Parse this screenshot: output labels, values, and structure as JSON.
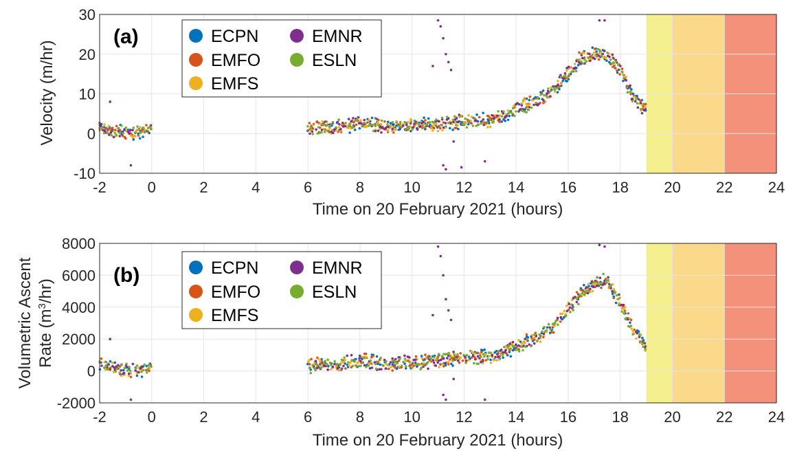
{
  "colors": {
    "ECPN": "#0072BD",
    "EMFO": "#D95319",
    "EMFS": "#EDB120",
    "EMNR": "#7E2F8E",
    "ESLN": "#77AC30",
    "band_yellow": "#f5ef8e",
    "band_orange": "#fbd98a",
    "band_red": "#f3917a"
  },
  "chart_data": [
    {
      "id": "a",
      "type": "scatter",
      "panel_label": "(a)",
      "ylabel": "Velocity (m/hr)",
      "xlabel": "Time on 20 February 2021 (hours)",
      "xlim": [
        -2,
        24
      ],
      "ylim": [
        -10,
        30
      ],
      "xticks": [
        "-2",
        "0",
        "2",
        "4",
        "6",
        "8",
        "10",
        "12",
        "14",
        "16",
        "18",
        "20",
        "22",
        "24"
      ],
      "yticks": [
        "-10",
        "0",
        "10",
        "20",
        "30"
      ],
      "grid": true,
      "legend_position": "top-left",
      "legend": [
        "ECPN",
        "EMFO",
        "EMFS",
        "EMNR",
        "ESLN"
      ],
      "shaded_bands": [
        {
          "from": 19,
          "to": 20,
          "color": "band_yellow"
        },
        {
          "from": 20,
          "to": 22,
          "color": "band_orange"
        },
        {
          "from": 22,
          "to": 24,
          "color": "band_red"
        }
      ],
      "trend": [
        [
          -2,
          1.5
        ],
        [
          -1.5,
          1.0
        ],
        [
          -1,
          0.5
        ],
        [
          -0.5,
          0.2
        ],
        [
          0,
          1.0
        ],
        [
          6,
          1.0
        ],
        [
          6.5,
          2.0
        ],
        [
          7,
          1.5
        ],
        [
          8,
          2.5
        ],
        [
          9,
          2.0
        ],
        [
          10,
          2.0
        ],
        [
          11,
          2.5
        ],
        [
          12,
          3.0
        ],
        [
          13,
          3.5
        ],
        [
          13.5,
          4.5
        ],
        [
          14,
          6.0
        ],
        [
          14.5,
          7.5
        ],
        [
          15,
          9.0
        ],
        [
          15.5,
          11.5
        ],
        [
          16,
          15.0
        ],
        [
          16.5,
          19.0
        ],
        [
          17,
          20.5
        ],
        [
          17.5,
          20.0
        ],
        [
          18,
          16.0
        ],
        [
          18.5,
          9.0
        ],
        [
          19,
          6.0
        ]
      ],
      "spread": 1.6,
      "emnr_outliers": [
        [
          11,
          28.5
        ],
        [
          11.1,
          27
        ],
        [
          11.2,
          24
        ],
        [
          11.3,
          20
        ],
        [
          11.4,
          18
        ],
        [
          11.5,
          16
        ],
        [
          10.8,
          17
        ],
        [
          11.2,
          -8
        ],
        [
          11.3,
          -9
        ],
        [
          11.6,
          -2
        ],
        [
          11.9,
          -8.5
        ],
        [
          12.8,
          -7
        ],
        [
          -1.6,
          8
        ],
        [
          -0.8,
          -8
        ],
        [
          17.2,
          28.5
        ],
        [
          17.4,
          28.5
        ]
      ]
    },
    {
      "id": "b",
      "type": "scatter",
      "panel_label": "(b)",
      "ylabel_line1": "Volumetric Ascent",
      "ylabel_line2_prefix": "Rate (m",
      "ylabel_line2_sup": "3",
      "ylabel_line2_suffix": "/hr)",
      "xlabel": "Time on 20 February 2021 (hours)",
      "xlim": [
        -2,
        24
      ],
      "ylim": [
        -2000,
        8000
      ],
      "xticks": [
        "-2",
        "0",
        "2",
        "4",
        "6",
        "8",
        "10",
        "12",
        "14",
        "16",
        "18",
        "20",
        "22",
        "24"
      ],
      "yticks": [
        "-2000",
        "0",
        "2000",
        "4000",
        "6000",
        "8000"
      ],
      "grid": true,
      "legend_position": "top-left",
      "legend": [
        "ECPN",
        "EMFO",
        "EMFS",
        "EMNR",
        "ESLN"
      ],
      "shaded_bands": [
        {
          "from": 19,
          "to": 20,
          "color": "band_yellow"
        },
        {
          "from": 20,
          "to": 22,
          "color": "band_orange"
        },
        {
          "from": 22,
          "to": 24,
          "color": "band_red"
        }
      ],
      "trend": [
        [
          -2,
          400
        ],
        [
          -1.5,
          250
        ],
        [
          -1,
          100
        ],
        [
          -0.5,
          50
        ],
        [
          0,
          250
        ],
        [
          6,
          250
        ],
        [
          6.5,
          500
        ],
        [
          7,
          400
        ],
        [
          8,
          650
        ],
        [
          9,
          500
        ],
        [
          10,
          500
        ],
        [
          11,
          650
        ],
        [
          12,
          800
        ],
        [
          13,
          900
        ],
        [
          13.5,
          1150
        ],
        [
          14,
          1500
        ],
        [
          14.5,
          1900
        ],
        [
          15,
          2300
        ],
        [
          15.5,
          2900
        ],
        [
          16,
          3800
        ],
        [
          16.5,
          4900
        ],
        [
          17,
          5500
        ],
        [
          17.5,
          5700
        ],
        [
          18,
          4200
        ],
        [
          18.5,
          2500
        ],
        [
          19,
          1600
        ]
      ],
      "spread": 400,
      "emnr_outliers": [
        [
          11,
          7800
        ],
        [
          11.1,
          7200
        ],
        [
          11.2,
          6000
        ],
        [
          11.3,
          4500
        ],
        [
          11.4,
          3800
        ],
        [
          11.5,
          3200
        ],
        [
          10.8,
          3500
        ],
        [
          11.2,
          -1500
        ],
        [
          11.3,
          -1800
        ],
        [
          11.6,
          -500
        ],
        [
          12.8,
          -1800
        ],
        [
          -1.6,
          2000
        ],
        [
          -0.8,
          -1800
        ],
        [
          17.2,
          7900
        ],
        [
          17.4,
          7800
        ]
      ]
    }
  ]
}
